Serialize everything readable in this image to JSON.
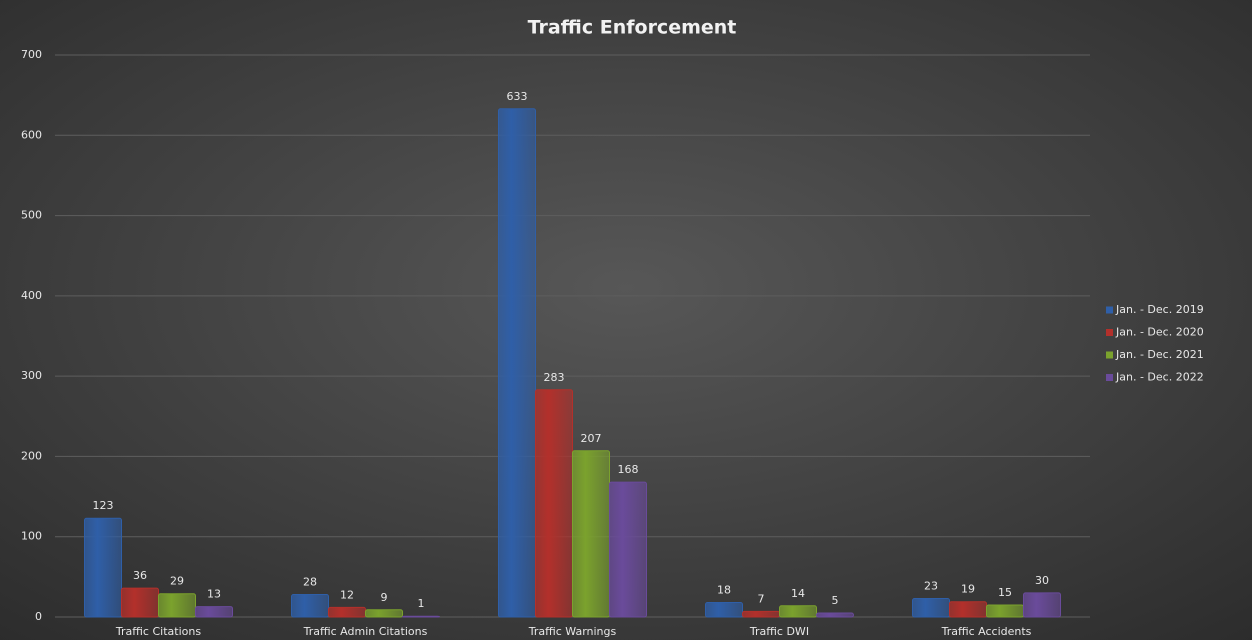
{
  "chart_data": {
    "type": "bar",
    "title": "Traffic Enforcement",
    "categories": [
      "Traffic Citations",
      "Traffic Admin Citations",
      "Traffic Warnings",
      "Traffic DWI",
      "Traffic Accidents"
    ],
    "series": [
      {
        "name": "Jan. - Dec. 2019",
        "color": "#2f5fa8",
        "values": [
          123,
          28,
          633,
          18,
          23
        ]
      },
      {
        "name": "Jan. - Dec. 2020",
        "color": "#b3302b",
        "values": [
          36,
          12,
          283,
          7,
          19
        ]
      },
      {
        "name": "Jan. - Dec. 2021",
        "color": "#7ba22d",
        "values": [
          29,
          9,
          207,
          14,
          15
        ]
      },
      {
        "name": "Jan. - Dec. 2022",
        "color": "#6a4b9b",
        "values": [
          13,
          1,
          168,
          5,
          30
        ]
      }
    ],
    "ylim": [
      0,
      700
    ],
    "yticks": [
      0,
      100,
      200,
      300,
      400,
      500,
      600,
      700
    ],
    "grid": true,
    "legend": "right"
  }
}
